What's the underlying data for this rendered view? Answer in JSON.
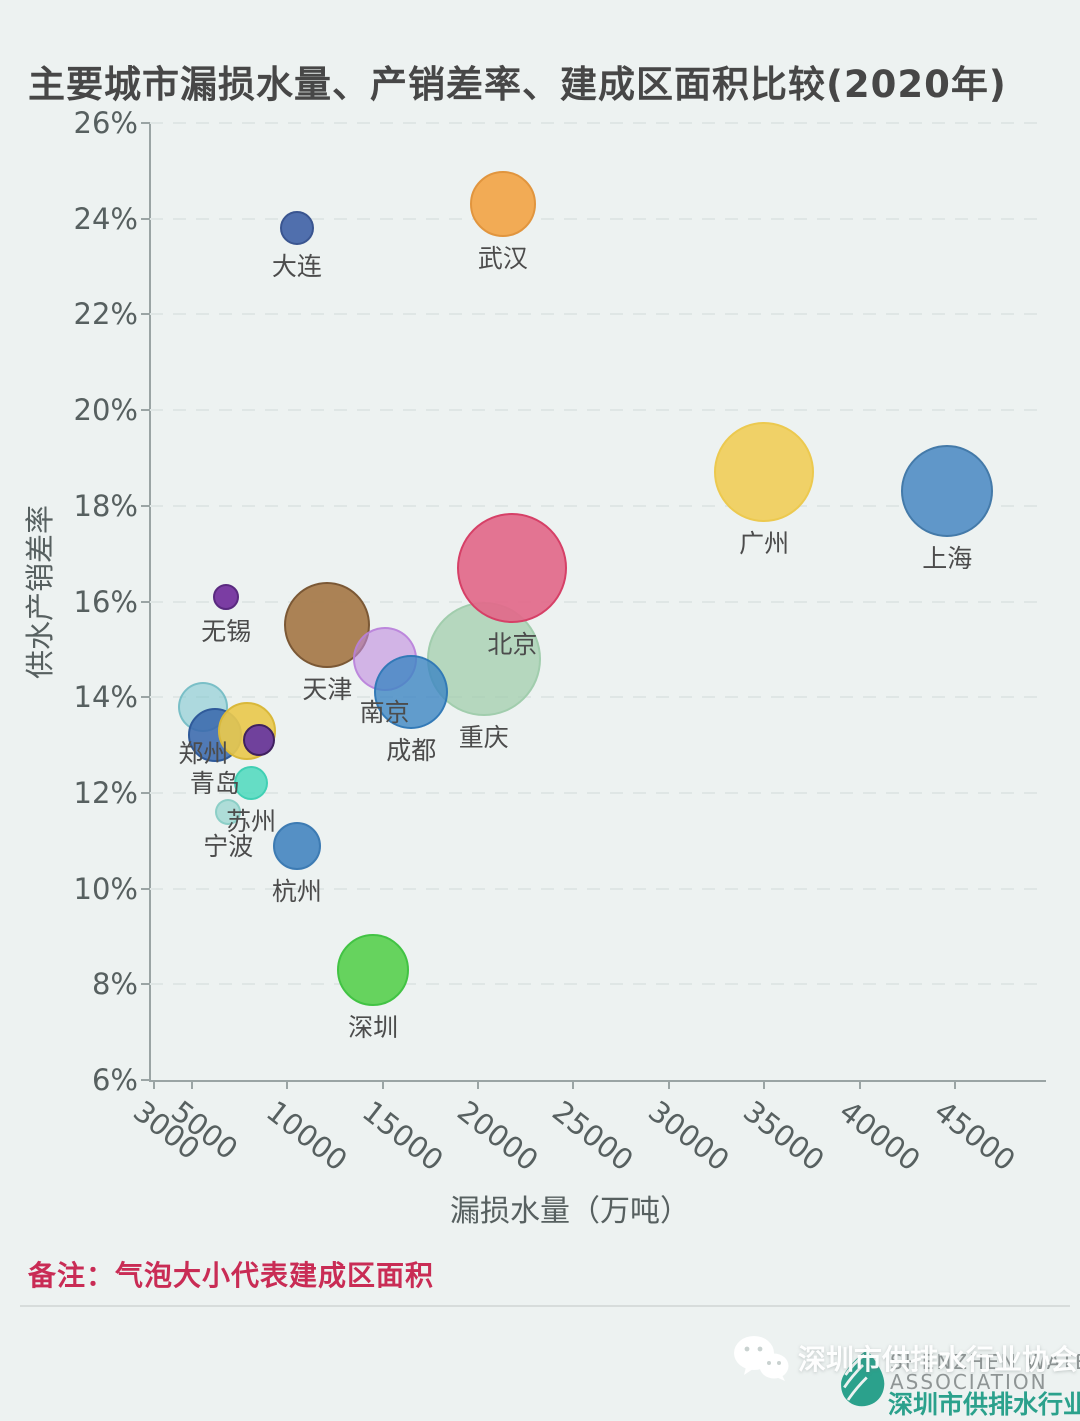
{
  "title": "主要城市漏损水量、产销差率、建成区面积比较(2020年)",
  "note": "备注：气泡大小代表建成区面积",
  "watermark": {
    "text": "深圳市供排水行业协会"
  },
  "logo": {
    "line1": "SHENZHEN WATER",
    "line2": "ASSOCIATION",
    "line3": "深圳市供排水行业协会"
  },
  "chart_data": {
    "type": "scatter",
    "title": "主要城市漏损水量、产销差率、建成区面积比较(2020年)",
    "xlabel": "漏损水量（万吨）",
    "ylabel": "供水产销差率",
    "x_ticks": [
      3000,
      5000,
      10000,
      15000,
      20000,
      25000,
      30000,
      35000,
      40000,
      45000
    ],
    "y_ticks": [
      26,
      24,
      22,
      20,
      18,
      16,
      14,
      12,
      10,
      8,
      6
    ],
    "x_range": [
      2800,
      49460
    ],
    "y_range": [
      6,
      26
    ],
    "y_tick_suffix": "%",
    "grid": "horizontal dashed lines, legend none",
    "size_note": "气泡大小代表建成区面积",
    "points": [
      {
        "label": "郑州",
        "x": 5600,
        "y": 13.8,
        "r": 25,
        "fill": "rgba(121,196,205,0.55)",
        "stroke": "rgba(109,185,194,0.8)"
      },
      {
        "label": "青岛",
        "x": 6200,
        "y": 13.2,
        "r": 27,
        "fill": "rgba(58,105,173,0.88)",
        "stroke": "#2f5a9a"
      },
      {
        "label": "",
        "x": 7900,
        "y": 13.3,
        "r": 29,
        "fill": "rgba(233,201,78,0.92)",
        "stroke": "#d9b83a"
      },
      {
        "label": "",
        "x": 8500,
        "y": 13.1,
        "r": 16,
        "fill": "rgba(107,60,158,0.97)",
        "stroke": "#40215f"
      },
      {
        "label": "苏州",
        "x": 8100,
        "y": 12.2,
        "r": 17,
        "fill": "rgba(76,217,189,0.85)",
        "stroke": "rgba(62,207,178,0.9)"
      },
      {
        "label": "宁波",
        "x": 6900,
        "y": 11.6,
        "r": 13,
        "fill": "rgba(147,212,205,0.7)",
        "stroke": "rgba(133,202,194,0.8)"
      },
      {
        "label": "无锡",
        "x": 6800,
        "y": 16.1,
        "r": 13,
        "fill": "rgba(123,61,163,1)",
        "stroke": "#5a2a80"
      },
      {
        "label": "大连",
        "x": 10500,
        "y": 23.8,
        "r": 17,
        "fill": "rgba(80,111,173,1)",
        "stroke": "#3a5590"
      },
      {
        "label": "武汉",
        "x": 21300,
        "y": 24.3,
        "r": 33,
        "fill": "rgba(242,171,85,1)",
        "stroke": "#e1953e"
      },
      {
        "label": "广州",
        "x": 35000,
        "y": 18.7,
        "r": 50,
        "fill": "rgba(240,209,103,1)",
        "stroke": "#ecc94f"
      },
      {
        "label": "上海",
        "x": 44600,
        "y": 18.3,
        "r": 46,
        "fill": "rgba(96,151,201,1)",
        "stroke": "#447aa9"
      },
      {
        "label": "杭州",
        "x": 10500,
        "y": 10.9,
        "r": 24,
        "fill": "rgba(85,144,197,1)",
        "stroke": "#3d7bb3"
      },
      {
        "label": "深圳",
        "x": 14500,
        "y": 8.3,
        "r": 36,
        "fill": "rgba(102,211,94,1)",
        "stroke": "#42c344"
      },
      {
        "label": "重庆",
        "x": 20300,
        "y": 14.8,
        "r": 57,
        "fill": "rgba(159,204,171,0.72)",
        "stroke": "rgba(159,204,171,0.9)"
      },
      {
        "label": "天津",
        "x": 12100,
        "y": 15.5,
        "r": 43,
        "fill": "rgba(168,126,80,0.97)",
        "stroke": "#7b5835"
      },
      {
        "label": "南京",
        "x": 15100,
        "y": 14.8,
        "r": 32,
        "fill": "rgba(192,138,224,0.6)",
        "stroke": "rgba(184,127,217,0.85)"
      },
      {
        "label": "成都",
        "x": 16500,
        "y": 14.1,
        "r": 37,
        "fill": "rgba(61,134,195,0.8)",
        "stroke": "rgba(47,119,181,0.9)"
      },
      {
        "label": "北京",
        "x": 21800,
        "y": 16.7,
        "r": 55,
        "fill": "rgba(226,105,138,0.92)",
        "stroke": "#d64067"
      }
    ]
  },
  "colors": {
    "background": "#edf2f1",
    "title_text": "#474747",
    "axis_text": "#576060",
    "label_text": "#4c4c4c",
    "note_text": "#c92c55",
    "logo_teal": "#2ba18c"
  }
}
